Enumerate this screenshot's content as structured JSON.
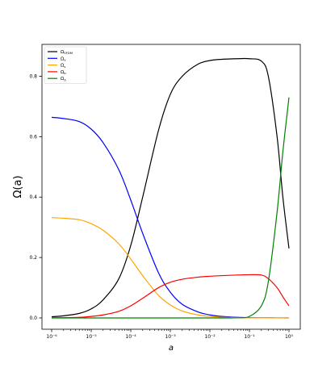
{
  "chart_data": {
    "type": "line",
    "title": "",
    "xlabel": "a",
    "ylabel": "Ω(a)",
    "xscale": "log",
    "xlim": [
      1e-06,
      1
    ],
    "ylim": [
      0,
      0.86
    ],
    "x_ticks": [
      1e-06,
      1e-05,
      0.0001,
      0.001,
      0.01,
      0.1,
      1
    ],
    "x_tick_labels": [
      "10⁻⁶",
      "10⁻⁵",
      "10⁻⁴",
      "10⁻³",
      "10⁻²",
      "10⁻¹",
      "10⁰"
    ],
    "y_ticks": [
      0.0,
      0.2,
      0.4,
      0.6,
      0.8
    ],
    "y_tick_labels": [
      "0.0",
      "0.2",
      "0.4",
      "0.6",
      "0.8"
    ],
    "grid": false,
    "legend": {
      "position": "top-left"
    },
    "x": [
      1e-06,
      2e-06,
      5e-06,
      1e-05,
      2e-05,
      5e-05,
      0.0001,
      0.0002,
      0.0005,
      0.001,
      0.002,
      0.005,
      0.01,
      0.02,
      0.05,
      0.1,
      0.2,
      0.3,
      0.5,
      0.7,
      1.0
    ],
    "series": [
      {
        "name": "Ω_SFDM",
        "color": "#000000",
        "values": [
          0.004,
          0.007,
          0.015,
          0.03,
          0.06,
          0.13,
          0.24,
          0.4,
          0.62,
          0.74,
          0.8,
          0.84,
          0.852,
          0.856,
          0.858,
          0.858,
          0.85,
          0.8,
          0.6,
          0.4,
          0.23
        ]
      },
      {
        "name": "Ω_γ",
        "color": "#0000ff",
        "values": [
          0.664,
          0.66,
          0.65,
          0.625,
          0.58,
          0.49,
          0.39,
          0.28,
          0.15,
          0.085,
          0.045,
          0.02,
          0.01,
          0.005,
          0.002,
          0.001,
          0.0005,
          0.0003,
          0.0002,
          0.0001,
          0.0001
        ]
      },
      {
        "name": "Ω_ν",
        "color": "#ffa500",
        "values": [
          0.332,
          0.33,
          0.325,
          0.312,
          0.29,
          0.245,
          0.195,
          0.14,
          0.075,
          0.043,
          0.023,
          0.01,
          0.005,
          0.0025,
          0.001,
          0.0005,
          0.0003,
          0.0002,
          0.0001,
          0.0001,
          0.0
        ]
      },
      {
        "name": "Ω_b",
        "color": "#ff0000",
        "values": [
          0.0005,
          0.001,
          0.002,
          0.005,
          0.01,
          0.022,
          0.04,
          0.065,
          0.1,
          0.118,
          0.128,
          0.135,
          0.138,
          0.14,
          0.142,
          0.143,
          0.142,
          0.13,
          0.1,
          0.07,
          0.04
        ]
      },
      {
        "name": "Ω_Λ",
        "color": "#008000",
        "values": [
          0.0,
          0.0,
          0.0,
          0.0,
          0.0,
          0.0,
          0.0,
          0.0,
          0.0,
          0.0,
          0.0,
          0.0,
          0.0,
          0.0,
          0.0005,
          0.005,
          0.04,
          0.12,
          0.35,
          0.55,
          0.73
        ]
      }
    ],
    "legend_entries": [
      {
        "base": "Ω",
        "sub": "SFDM"
      },
      {
        "base": "Ω",
        "sub": "γ"
      },
      {
        "base": "Ω",
        "sub": "ν"
      },
      {
        "base": "Ω",
        "sub": "b"
      },
      {
        "base": "Ω",
        "sub": "Λ"
      }
    ]
  }
}
